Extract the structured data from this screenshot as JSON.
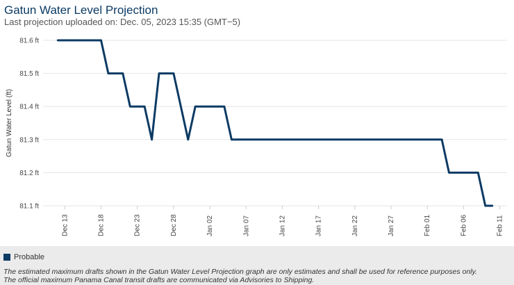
{
  "header": {
    "title": "Gatun Water Level Projection",
    "subtitle": "Last projection uploaded on: Dec. 05, 2023 15:35 (GMT−5)"
  },
  "chart_data": {
    "type": "line",
    "title": "Gatun Water Level Projection",
    "xlabel": "",
    "ylabel": "Gatun Water Level (ft)",
    "ylim": [
      81.1,
      81.6
    ],
    "y_ticks": [
      "81.6 ft",
      "81.5 ft",
      "81.4 ft",
      "81.3 ft",
      "81.2 ft",
      "81.1 ft"
    ],
    "y_tick_values": [
      81.6,
      81.5,
      81.4,
      81.3,
      81.2,
      81.1
    ],
    "x_ticks": [
      "Dec 13",
      "Dec 18",
      "Dec 23",
      "Dec 28",
      "Jan 02",
      "Jan 07",
      "Jan 12",
      "Jan 17",
      "Jan 22",
      "Jan 27",
      "Feb 01",
      "Feb 06",
      "Feb 11"
    ],
    "x_tick_days": [
      0,
      5,
      10,
      15,
      20,
      25,
      30,
      35,
      40,
      45,
      50,
      55,
      60
    ],
    "grid": true,
    "legend_position": "bottom-left",
    "series": [
      {
        "name": "Probable",
        "color": "#0b3a63",
        "x_days": [
          -1,
          5,
          6,
          8,
          9,
          11,
          12,
          13,
          15,
          17,
          18,
          19,
          22,
          23,
          27,
          52,
          53,
          57,
          58,
          59
        ],
        "values": [
          81.6,
          81.6,
          81.5,
          81.5,
          81.4,
          81.4,
          81.3,
          81.5,
          81.5,
          81.3,
          81.4,
          81.4,
          81.4,
          81.3,
          81.3,
          81.3,
          81.2,
          81.2,
          81.1,
          81.1
        ]
      }
    ]
  },
  "legend": {
    "label": "Probable",
    "color": "#0b3a63"
  },
  "footer": {
    "disclaimer_line1": "The estimated maximum drafts shown in the Gatun Water Level Projection graph are only estimates and shall be used for reference purposes only.",
    "disclaimer_line2": "The official maximum Panama Canal transit drafts are communicated via Advisories to Shipping."
  }
}
